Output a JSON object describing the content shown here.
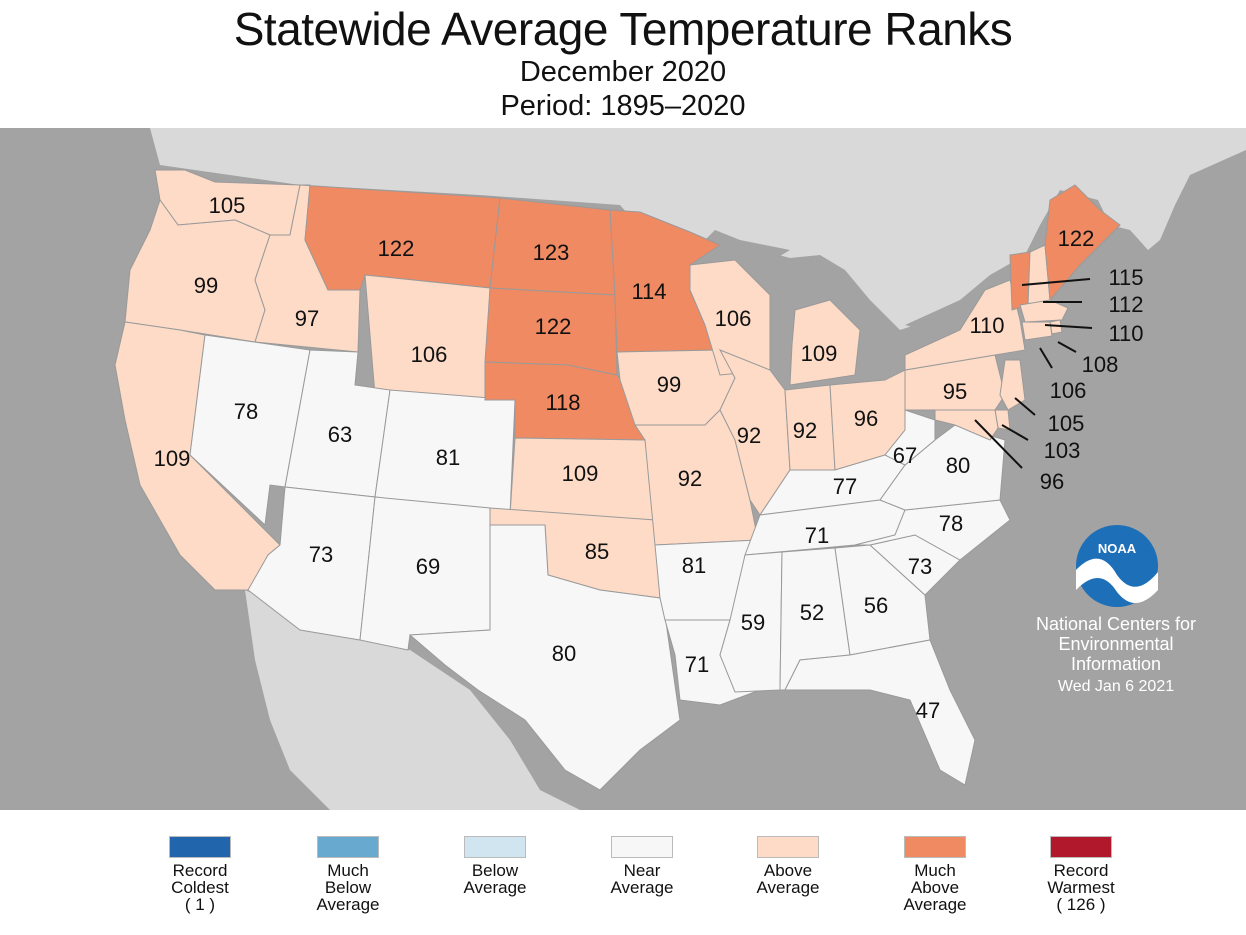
{
  "title": "Statewide Average Temperature Ranks",
  "subtitle": "December 2020",
  "period": "Period: 1895–2020",
  "colors": {
    "background": "#a3a3a3",
    "neighbor_land": "#d9d9d9",
    "record_coldest": "#2166ac",
    "much_below": "#67a9cf",
    "below": "#d1e5f0",
    "near": "#f7f7f7",
    "above": "#fddbc7",
    "much_above": "#ef8a62",
    "record_warmest": "#b2182b"
  },
  "states": [
    {
      "id": "WA",
      "rank": "105",
      "category": "above"
    },
    {
      "id": "OR",
      "rank": "99",
      "category": "above"
    },
    {
      "id": "CA",
      "rank": "109",
      "category": "above"
    },
    {
      "id": "ID",
      "rank": "97",
      "category": "above"
    },
    {
      "id": "NV",
      "rank": "78",
      "category": "near"
    },
    {
      "id": "MT",
      "rank": "122",
      "category": "much_above"
    },
    {
      "id": "WY",
      "rank": "106",
      "category": "above"
    },
    {
      "id": "UT",
      "rank": "63",
      "category": "near"
    },
    {
      "id": "CO",
      "rank": "81",
      "category": "near"
    },
    {
      "id": "AZ",
      "rank": "73",
      "category": "near"
    },
    {
      "id": "NM",
      "rank": "69",
      "category": "near"
    },
    {
      "id": "ND",
      "rank": "123",
      "category": "much_above"
    },
    {
      "id": "SD",
      "rank": "122",
      "category": "much_above"
    },
    {
      "id": "NE",
      "rank": "118",
      "category": "much_above"
    },
    {
      "id": "KS",
      "rank": "109",
      "category": "above"
    },
    {
      "id": "OK",
      "rank": "85",
      "category": "above"
    },
    {
      "id": "TX",
      "rank": "80",
      "category": "near"
    },
    {
      "id": "MN",
      "rank": "114",
      "category": "much_above"
    },
    {
      "id": "IA",
      "rank": "99",
      "category": "above"
    },
    {
      "id": "MO",
      "rank": "92",
      "category": "above"
    },
    {
      "id": "AR",
      "rank": "81",
      "category": "near"
    },
    {
      "id": "LA",
      "rank": "71",
      "category": "near"
    },
    {
      "id": "WI",
      "rank": "106",
      "category": "above"
    },
    {
      "id": "IL",
      "rank": "92",
      "category": "above"
    },
    {
      "id": "MI",
      "rank": "109",
      "category": "above"
    },
    {
      "id": "IN",
      "rank": "92",
      "category": "above"
    },
    {
      "id": "OH",
      "rank": "96",
      "category": "above"
    },
    {
      "id": "KY",
      "rank": "77",
      "category": "near"
    },
    {
      "id": "TN",
      "rank": "71",
      "category": "near"
    },
    {
      "id": "MS",
      "rank": "59",
      "category": "near"
    },
    {
      "id": "AL",
      "rank": "52",
      "category": "near"
    },
    {
      "id": "GA",
      "rank": "56",
      "category": "near"
    },
    {
      "id": "FL",
      "rank": "47",
      "category": "near"
    },
    {
      "id": "SC",
      "rank": "73",
      "category": "near"
    },
    {
      "id": "NC",
      "rank": "78",
      "category": "near"
    },
    {
      "id": "VA",
      "rank": "80",
      "category": "near"
    },
    {
      "id": "WV",
      "rank": "67",
      "category": "near"
    },
    {
      "id": "PA",
      "rank": "95",
      "category": "above"
    },
    {
      "id": "NY",
      "rank": "110",
      "category": "above"
    },
    {
      "id": "VT",
      "rank": "115",
      "category": "much_above"
    },
    {
      "id": "NH",
      "rank": "112",
      "category": "above"
    },
    {
      "id": "ME",
      "rank": "122",
      "category": "much_above"
    },
    {
      "id": "MA",
      "rank": "110",
      "category": "above"
    },
    {
      "id": "RI",
      "rank": "108",
      "category": "above"
    },
    {
      "id": "CT",
      "rank": "106",
      "category": "above"
    },
    {
      "id": "NJ",
      "rank": "105",
      "category": "above"
    },
    {
      "id": "DE",
      "rank": "103",
      "category": "above"
    },
    {
      "id": "MD",
      "rank": "96",
      "category": "above"
    }
  ],
  "credit": {
    "line1": "National Centers for",
    "line2": "Environmental",
    "line3": "Information",
    "date": "Wed Jan  6 2021"
  },
  "legend": [
    {
      "key": "record_coldest",
      "label": "Record\nColdest\n( 1 )"
    },
    {
      "key": "much_below",
      "label": "Much\nBelow\nAverage"
    },
    {
      "key": "below",
      "label": "Below\nAverage"
    },
    {
      "key": "near",
      "label": "Near\nAverage"
    },
    {
      "key": "above",
      "label": "Above\nAverage"
    },
    {
      "key": "much_above",
      "label": "Much\nAbove\nAverage"
    },
    {
      "key": "record_warmest",
      "label": "Record\nWarmest\n( 126 )"
    }
  ]
}
